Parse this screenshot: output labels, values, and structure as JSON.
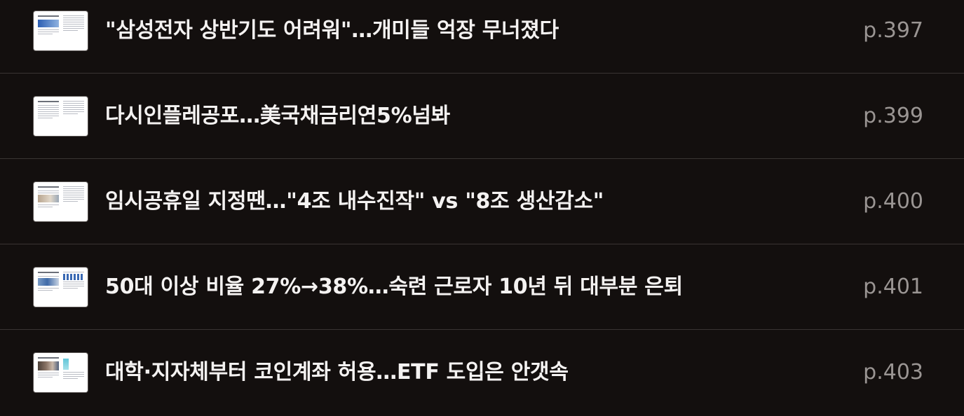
{
  "toc": {
    "items": [
      {
        "title": "\"삼성전자 상반기도 어려워\"…개미들 억장 무너졌다",
        "page": "p.397"
      },
      {
        "title": "다시인플레공포…美국채금리연5%넘봐",
        "page": "p.399"
      },
      {
        "title": "임시공휴일 지정땐…\"4조 내수진작\" vs \"8조 생산감소\"",
        "page": "p.400"
      },
      {
        "title": "50대 이상 비율 27%→38%…숙련 근로자 10년 뒤 대부분 은퇴",
        "page": "p.401"
      },
      {
        "title": "대학·지자체부터 코인계좌 허용…ETF 도입은 안갯속",
        "page": "p.403"
      }
    ]
  },
  "colors": {
    "background": "#130f0e",
    "divider": "#3a3533",
    "title_text": "#f4f2f1",
    "page_text": "#9a9593"
  }
}
